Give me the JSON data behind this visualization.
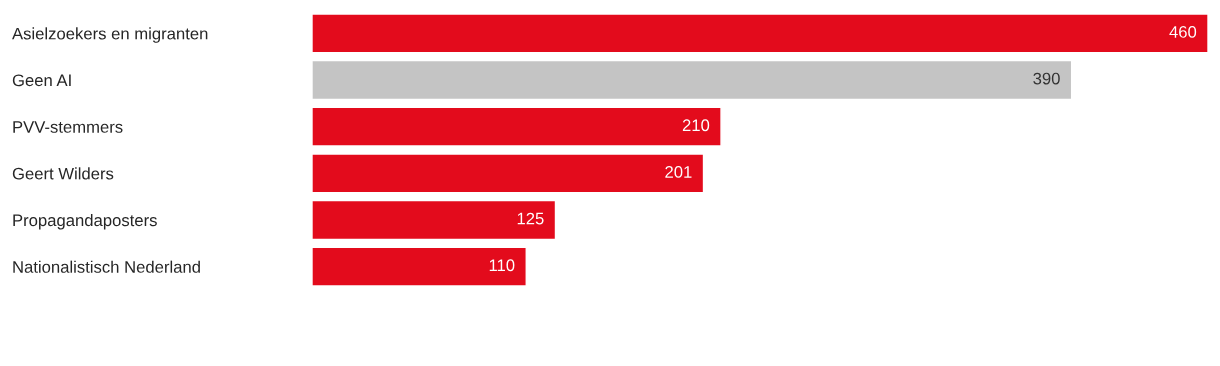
{
  "chart_data": {
    "type": "bar",
    "orientation": "horizontal",
    "categories": [
      "Asielzoekers en migranten",
      "Geen AI",
      "PVV-stemmers",
      "Geert Wilders",
      "Propagandaposters",
      "Nationalistisch Nederland"
    ],
    "values": [
      460,
      390,
      210,
      201,
      125,
      110
    ],
    "colors": [
      "#e30b1c",
      "#c4c4c4",
      "#e30b1c",
      "#e30b1c",
      "#e30b1c",
      "#e30b1c"
    ],
    "data_labels": true,
    "grid": false,
    "legend": false
  }
}
